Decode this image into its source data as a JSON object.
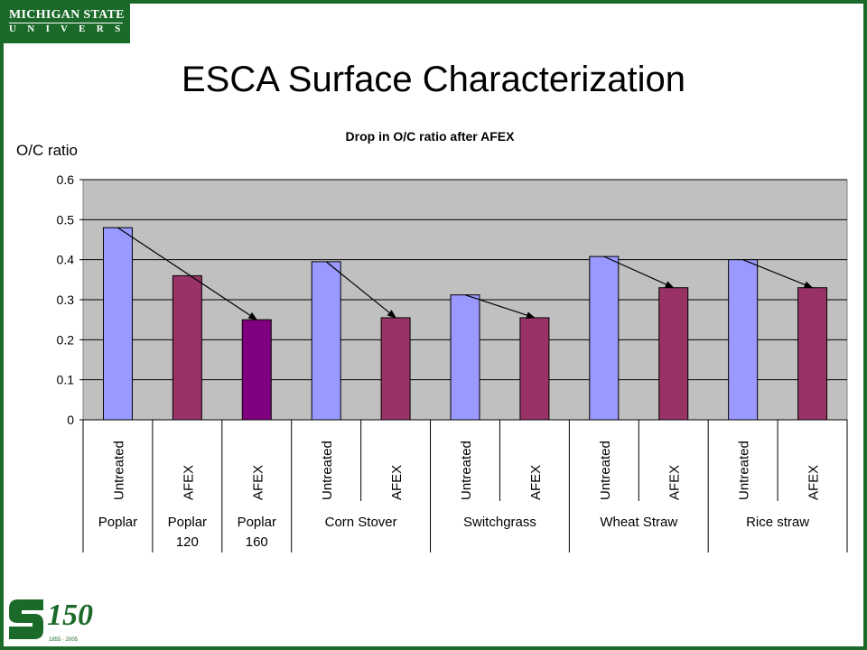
{
  "header": {
    "logo_line1": "MICHIGAN STATE",
    "logo_line2": "U N I V E R S I T Y",
    "slide_title": "ESCA Surface Characterization"
  },
  "footer": {
    "seal_icon": "msu-spartan-s-150-years-icon",
    "seal_years": "1855 · 2005"
  },
  "colors": {
    "plot_bg": "#c0c0c0",
    "untreated": "#9999ff",
    "afex": "#993366",
    "afex_highlight": "#800080",
    "brand_green": "#1b6a2a"
  },
  "chart_data": {
    "type": "bar",
    "title": "Drop in O/C ratio after AFEX",
    "ylabel": "O/C ratio",
    "ylim": [
      0,
      0.6
    ],
    "yticks": [
      "0",
      "0.1",
      "0.2",
      "0.3",
      "0.4",
      "0.5",
      "0.6"
    ],
    "grid": true,
    "bars": [
      {
        "label": "Untreated",
        "value": 0.48,
        "group": 0,
        "color": "untreated"
      },
      {
        "label": "AFEX",
        "value": 0.36,
        "group": 1,
        "color": "afex"
      },
      {
        "label": "AFEX",
        "value": 0.25,
        "group": 2,
        "color": "afex_highlight"
      },
      {
        "label": "Untreated",
        "value": 0.395,
        "group": 3,
        "color": "untreated"
      },
      {
        "label": "AFEX",
        "value": 0.255,
        "group": 3,
        "color": "afex"
      },
      {
        "label": "Untreated",
        "value": 0.312,
        "group": 4,
        "color": "untreated"
      },
      {
        "label": "AFEX",
        "value": 0.255,
        "group": 4,
        "color": "afex"
      },
      {
        "label": "Untreated",
        "value": 0.408,
        "group": 5,
        "color": "untreated"
      },
      {
        "label": "AFEX",
        "value": 0.33,
        "group": 5,
        "color": "afex"
      },
      {
        "label": "Untreated",
        "value": 0.4,
        "group": 6,
        "color": "untreated"
      },
      {
        "label": "AFEX",
        "value": 0.33,
        "group": 6,
        "color": "afex"
      }
    ],
    "groups": [
      {
        "line1": "Poplar",
        "line2": ""
      },
      {
        "line1": "Poplar",
        "line2": "120"
      },
      {
        "line1": "Poplar",
        "line2": "160"
      },
      {
        "line1": "Corn Stover",
        "line2": ""
      },
      {
        "line1": "Switchgrass",
        "line2": ""
      },
      {
        "line1": "Wheat Straw",
        "line2": ""
      },
      {
        "line1": "Rice straw",
        "line2": ""
      }
    ],
    "arrows": [
      {
        "from": 0,
        "to": 2
      },
      {
        "from": 3,
        "to": 4
      },
      {
        "from": 5,
        "to": 6
      },
      {
        "from": 7,
        "to": 8
      },
      {
        "from": 9,
        "to": 10
      }
    ]
  }
}
